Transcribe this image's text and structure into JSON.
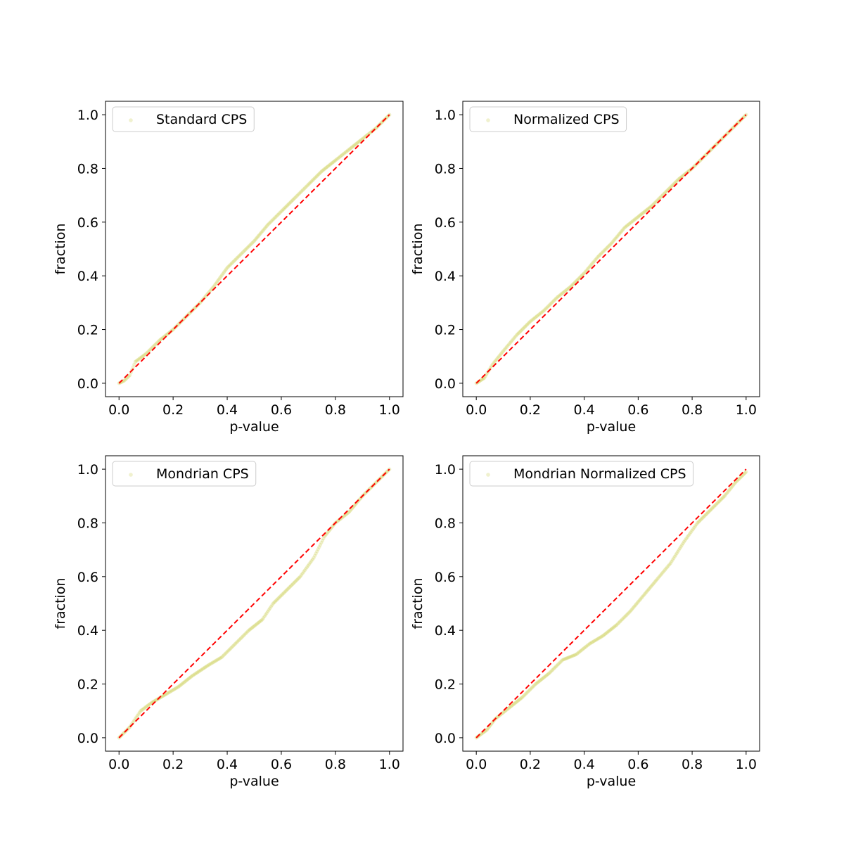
{
  "figure": {
    "background": "#ffffff"
  },
  "style": {
    "curve_color": "#bcbd22",
    "reference_color": "#ff0000"
  },
  "chart_data": [
    {
      "type": "scatter",
      "legend": "Standard CPS",
      "legend_position": "upper-left",
      "xlabel": "p-value",
      "ylabel": "fraction",
      "xlim": [
        -0.05,
        1.05
      ],
      "ylim": [
        -0.05,
        1.05
      ],
      "xticks": [
        "0.0",
        "0.2",
        "0.4",
        "0.6",
        "0.8",
        "1.0"
      ],
      "yticks": [
        "0.0",
        "0.2",
        "0.4",
        "0.6",
        "0.8",
        "1.0"
      ],
      "grid": false,
      "reference_line": {
        "x": [
          0,
          1
        ],
        "y": [
          0,
          1
        ],
        "style": "dashed"
      },
      "series": [
        {
          "name": "Standard CPS",
          "x": [
            0.0,
            0.02,
            0.04,
            0.06,
            0.1,
            0.15,
            0.2,
            0.25,
            0.3,
            0.35,
            0.4,
            0.45,
            0.5,
            0.55,
            0.6,
            0.65,
            0.7,
            0.75,
            0.8,
            0.85,
            0.9,
            0.95,
            1.0
          ],
          "y": [
            0.0,
            0.01,
            0.03,
            0.08,
            0.11,
            0.16,
            0.2,
            0.25,
            0.3,
            0.36,
            0.43,
            0.48,
            0.53,
            0.59,
            0.64,
            0.69,
            0.74,
            0.79,
            0.83,
            0.87,
            0.91,
            0.95,
            1.0
          ]
        }
      ]
    },
    {
      "type": "scatter",
      "legend": "Normalized CPS",
      "legend_position": "upper-left",
      "xlabel": "p-value",
      "ylabel": "fraction",
      "xlim": [
        -0.05,
        1.05
      ],
      "ylim": [
        -0.05,
        1.05
      ],
      "xticks": [
        "0.0",
        "0.2",
        "0.4",
        "0.6",
        "0.8",
        "1.0"
      ],
      "yticks": [
        "0.0",
        "0.2",
        "0.4",
        "0.6",
        "0.8",
        "1.0"
      ],
      "grid": false,
      "reference_line": {
        "x": [
          0,
          1
        ],
        "y": [
          0,
          1
        ],
        "style": "dashed"
      },
      "series": [
        {
          "name": "Normalized CPS",
          "x": [
            0.0,
            0.03,
            0.06,
            0.1,
            0.15,
            0.2,
            0.25,
            0.3,
            0.35,
            0.4,
            0.45,
            0.5,
            0.55,
            0.6,
            0.65,
            0.7,
            0.75,
            0.8,
            0.85,
            0.9,
            0.95,
            1.0
          ],
          "y": [
            0.0,
            0.02,
            0.07,
            0.12,
            0.18,
            0.23,
            0.27,
            0.32,
            0.36,
            0.41,
            0.47,
            0.52,
            0.58,
            0.62,
            0.66,
            0.71,
            0.76,
            0.8,
            0.85,
            0.9,
            0.95,
            1.0
          ]
        }
      ]
    },
    {
      "type": "scatter",
      "legend": "Mondrian CPS",
      "legend_position": "upper-left",
      "xlabel": "p-value",
      "ylabel": "fraction",
      "xlim": [
        -0.05,
        1.05
      ],
      "ylim": [
        -0.05,
        1.05
      ],
      "xticks": [
        "0.0",
        "0.2",
        "0.4",
        "0.6",
        "0.8",
        "1.0"
      ],
      "yticks": [
        "0.0",
        "0.2",
        "0.4",
        "0.6",
        "0.8",
        "1.0"
      ],
      "grid": false,
      "reference_line": {
        "x": [
          0,
          1
        ],
        "y": [
          0,
          1
        ],
        "style": "dashed"
      },
      "series": [
        {
          "name": "Mondrian CPS",
          "x": [
            0.0,
            0.04,
            0.08,
            0.12,
            0.17,
            0.22,
            0.27,
            0.33,
            0.38,
            0.43,
            0.48,
            0.53,
            0.57,
            0.62,
            0.67,
            0.72,
            0.76,
            0.8,
            0.85,
            0.9,
            0.95,
            1.0
          ],
          "y": [
            0.0,
            0.04,
            0.1,
            0.13,
            0.16,
            0.19,
            0.23,
            0.27,
            0.3,
            0.35,
            0.4,
            0.44,
            0.5,
            0.55,
            0.6,
            0.67,
            0.75,
            0.8,
            0.84,
            0.9,
            0.95,
            1.0
          ]
        }
      ]
    },
    {
      "type": "scatter",
      "legend": "Mondrian Normalized CPS",
      "legend_position": "upper-left",
      "xlabel": "p-value",
      "ylabel": "fraction",
      "xlim": [
        -0.05,
        1.05
      ],
      "ylim": [
        -0.05,
        1.05
      ],
      "xticks": [
        "0.0",
        "0.2",
        "0.4",
        "0.6",
        "0.8",
        "1.0"
      ],
      "yticks": [
        "0.0",
        "0.2",
        "0.4",
        "0.6",
        "0.8",
        "1.0"
      ],
      "grid": false,
      "reference_line": {
        "x": [
          0,
          1
        ],
        "y": [
          0,
          1
        ],
        "style": "dashed"
      },
      "series": [
        {
          "name": "Mondrian Normalized CPS",
          "x": [
            0.0,
            0.04,
            0.07,
            0.12,
            0.17,
            0.22,
            0.27,
            0.32,
            0.37,
            0.42,
            0.47,
            0.52,
            0.57,
            0.62,
            0.67,
            0.72,
            0.77,
            0.82,
            0.87,
            0.92,
            0.96,
            1.0
          ],
          "y": [
            0.0,
            0.03,
            0.07,
            0.11,
            0.15,
            0.2,
            0.24,
            0.29,
            0.31,
            0.35,
            0.38,
            0.42,
            0.47,
            0.53,
            0.59,
            0.65,
            0.73,
            0.8,
            0.85,
            0.9,
            0.95,
            0.99
          ]
        }
      ]
    }
  ]
}
